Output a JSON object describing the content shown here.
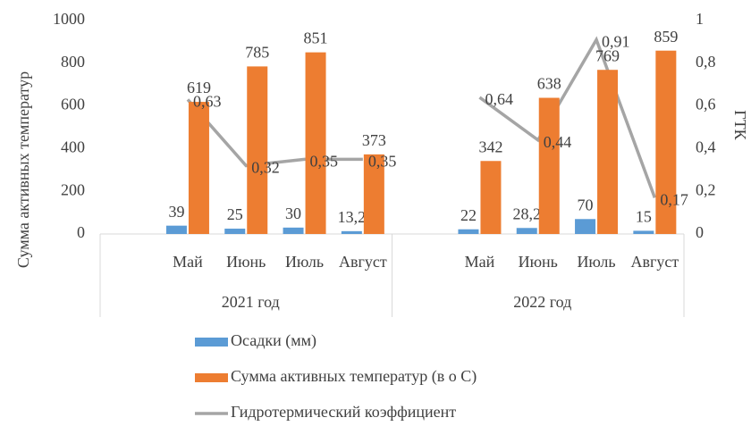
{
  "chart_data": {
    "type": "bar_line",
    "y_label": "Сумма активных температур",
    "y2_label": "ГТК",
    "categories": [
      null,
      "Май",
      "Июнь",
      "Июль",
      "Август",
      null,
      "Май",
      "Июнь",
      "Июль",
      "Август"
    ],
    "category_groups": [
      "2021 год",
      "2022 год"
    ],
    "series": [
      {
        "name": "Осадки (мм)",
        "color": "#5b9bd5",
        "kind": "bar",
        "values": [
          null,
          39,
          25,
          30,
          13.2,
          null,
          22,
          28.2,
          70,
          15
        ],
        "value_labels": [
          null,
          "39",
          "25",
          "30",
          "13,2",
          null,
          "22",
          "28,2",
          "70",
          "15"
        ]
      },
      {
        "name": "Сумма активных температур (в о С)",
        "color": "#ed7d31",
        "kind": "bar",
        "values": [
          null,
          619,
          785,
          851,
          373,
          null,
          342,
          638,
          769,
          859
        ]
      },
      {
        "name": "Гидротермический коэффициент",
        "color": "#a5a5a5",
        "kind": "line",
        "axis": "y2",
        "values": [
          null,
          0.63,
          0.32,
          0.35,
          0.35,
          null,
          0.64,
          0.44,
          0.91,
          0.17
        ],
        "value_labels": [
          null,
          "0,63",
          "0,32",
          "0,35",
          "0,35",
          null,
          "0,64",
          "0,44",
          "0,91",
          "0,17"
        ]
      }
    ],
    "ylim": [
      0,
      1000
    ],
    "yticks": [
      0,
      200,
      400,
      600,
      800,
      1000
    ],
    "y2lim": [
      0,
      1
    ],
    "y2ticks": [
      0,
      {
        "value": 0.2,
        "label": "0,2"
      },
      {
        "value": 0.4,
        "label": "0,4"
      },
      {
        "value": 0.6,
        "label": "0,6"
      },
      {
        "value": 0.8,
        "label": "0,8"
      },
      1
    ]
  }
}
